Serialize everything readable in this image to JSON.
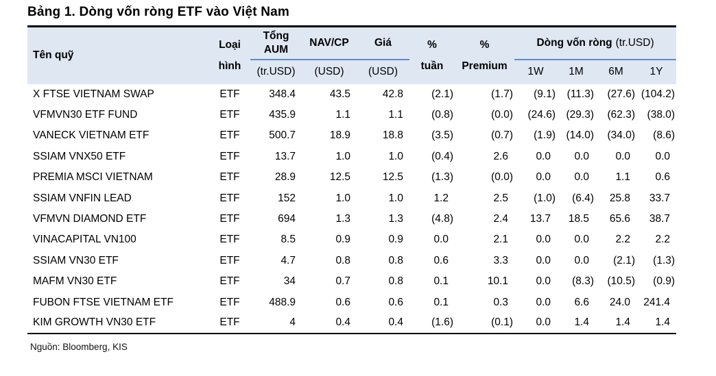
{
  "title": "Bảng 1. Dòng vốn ròng ETF vào Việt Nam",
  "source": "Nguồn: Bloomberg, KIS",
  "colors": {
    "header_bg": "#dfe7f3",
    "rule_blue": "#5d8dc6",
    "table_border": "#000000"
  },
  "table": {
    "headers": {
      "fund": "Tên quỹ",
      "type_line1": "Loại",
      "type_line2": "hình",
      "aum_line1": "Tổng",
      "aum_line2": "AUM",
      "aum_unit": "(tr.USD)",
      "nav": "NAV/CP",
      "nav_unit": "(USD)",
      "price": "Giá",
      "price_unit": "(USD)",
      "week_line1": "%",
      "week_line2": "tuần",
      "premium_line1": "%",
      "premium_line2": "Premium",
      "flow_group": "Dòng vốn ròng",
      "flow_group_unit": "(tr.USD)",
      "flow_cols": [
        "1W",
        "1M",
        "6M",
        "1Y"
      ]
    },
    "rows": [
      [
        "X FTSE VIETNAM SWAP",
        "ETF",
        "348.4",
        "43.5",
        "42.8",
        "(2.1)",
        "(1.7)",
        "(9.1)",
        "(11.3)",
        "(27.6)",
        "(104.2)"
      ],
      [
        "VFMVN30 ETF FUND",
        "ETF",
        "435.9",
        "1.1",
        "1.1",
        "(0.8)",
        "(0.0)",
        "(24.6)",
        "(29.3)",
        "(62.3)",
        "(38.0)"
      ],
      [
        "VANECK VIETNAM ETF",
        "ETF",
        "500.7",
        "18.9",
        "18.8",
        "(3.5)",
        "(0.7)",
        "(1.9)",
        "(14.0)",
        "(34.0)",
        "(8.6)"
      ],
      [
        "SSIAM VNX50 ETF",
        "ETF",
        "13.7",
        "1.0",
        "1.0",
        "(0.4)",
        "2.6",
        "0.0",
        "0.0",
        "0.0",
        "0.0"
      ],
      [
        "PREMIA MSCI VIETNAM",
        "ETF",
        "28.9",
        "12.5",
        "12.5",
        "(1.3)",
        "(0.0)",
        "0.0",
        "0.0",
        "1.1",
        "0.6"
      ],
      [
        "SSIAM VNFIN LEAD",
        "ETF",
        "152",
        "1.0",
        "1.0",
        "1.2",
        "2.5",
        "(1.0)",
        "(6.4)",
        "25.8",
        "33.7"
      ],
      [
        "VFMVN DIAMOND ETF",
        "ETF",
        "694",
        "1.3",
        "1.3",
        "(4.8)",
        "2.4",
        "13.7",
        "18.5",
        "65.6",
        "38.7"
      ],
      [
        "VINACAPITAL VN100",
        "ETF",
        "8.5",
        "0.9",
        "0.9",
        "0.0",
        "2.1",
        "0.0",
        "0.0",
        "2.2",
        "2.2"
      ],
      [
        "SSIAM VN30 ETF",
        "ETF",
        "4.7",
        "0.8",
        "0.8",
        "0.6",
        "3.3",
        "0.0",
        "0.0",
        "(2.1)",
        "(1.3)"
      ],
      [
        "MAFM VN30 ETF",
        "ETF",
        "34",
        "0.7",
        "0.8",
        "0.1",
        "10.1",
        "0.0",
        "(8.3)",
        "(10.5)",
        "(0.9)"
      ],
      [
        "FUBON FTSE VIETNAM ETF",
        "ETF",
        "488.9",
        "0.6",
        "0.6",
        "0.1",
        "0.3",
        "0.0",
        "6.6",
        "24.0",
        "241.4"
      ],
      [
        "KIM GROWTH VN30 ETF",
        "ETF",
        "4",
        "0.4",
        "0.4",
        "(1.6)",
        "(0.1)",
        "0.0",
        "1.4",
        "1.4",
        "1.4"
      ]
    ]
  }
}
